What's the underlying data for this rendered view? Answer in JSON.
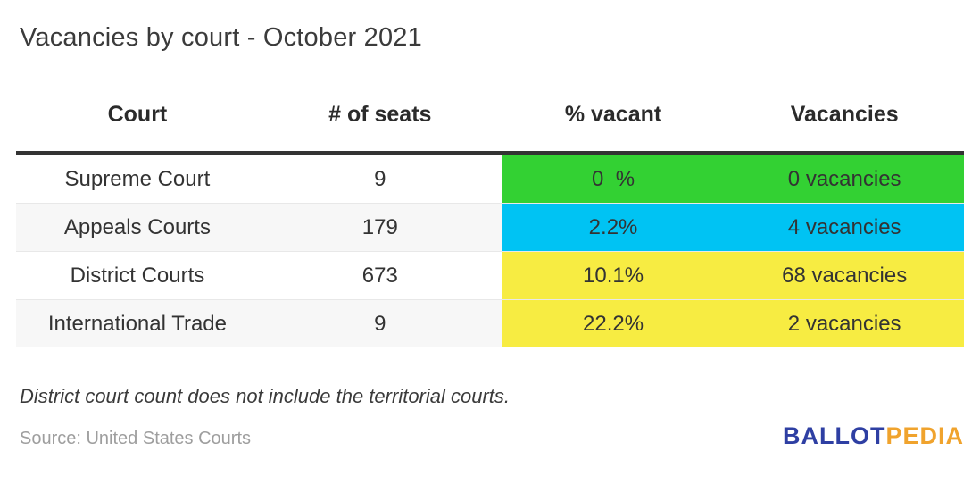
{
  "title": "Vacancies by court - October 2021",
  "table": {
    "headers": [
      "Court",
      "# of seats",
      "% vacant",
      "Vacancies"
    ],
    "rows": [
      {
        "court": "Supreme Court",
        "seats": "9",
        "pct_vacant": "0  %",
        "vacancies": "0 vacancies",
        "color": "#33d133"
      },
      {
        "court": "Appeals Courts",
        "seats": "179",
        "pct_vacant": "2.2%",
        "vacancies": "4 vacancies",
        "color": "#00c3f3"
      },
      {
        "court": "District Courts",
        "seats": "673",
        "pct_vacant": "10.1%",
        "vacancies": "68 vacancies",
        "color": "#f7ec42"
      },
      {
        "court": "International Trade",
        "seats": "9",
        "pct_vacant": "22.2%",
        "vacancies": "2 vacancies",
        "color": "#f7ec42"
      }
    ]
  },
  "note": "District court count does not include the territorial courts.",
  "source": "Source: United States Courts",
  "logo": {
    "part1": "BALLOT",
    "part2": "PEDIA",
    "blue": "#2e3fa3",
    "orange": "#f0a32d"
  },
  "chart_data": {
    "type": "table",
    "title": "Vacancies by court - October 2021",
    "columns": [
      "Court",
      "# of seats",
      "% vacant",
      "Vacancies"
    ],
    "rows": [
      [
        "Supreme Court",
        9,
        "0 %",
        "0 vacancies"
      ],
      [
        "Appeals Courts",
        179,
        "2.2%",
        "4 vacancies"
      ],
      [
        "District Courts",
        673,
        "10.1%",
        "68 vacancies"
      ],
      [
        "International Trade",
        9,
        "22.2%",
        "2 vacancies"
      ]
    ],
    "pct_vacant_values": [
      0,
      2.2,
      10.1,
      22.2
    ],
    "vacancy_counts": [
      0,
      4,
      68,
      2
    ],
    "seat_counts": [
      9,
      179,
      673,
      9
    ],
    "highlight_colors": [
      "#33d133",
      "#00c3f3",
      "#f7ec42",
      "#f7ec42"
    ],
    "highlighted_columns": [
      "% vacant",
      "Vacancies"
    ],
    "note": "District court count does not include the territorial courts.",
    "source": "United States Courts"
  }
}
